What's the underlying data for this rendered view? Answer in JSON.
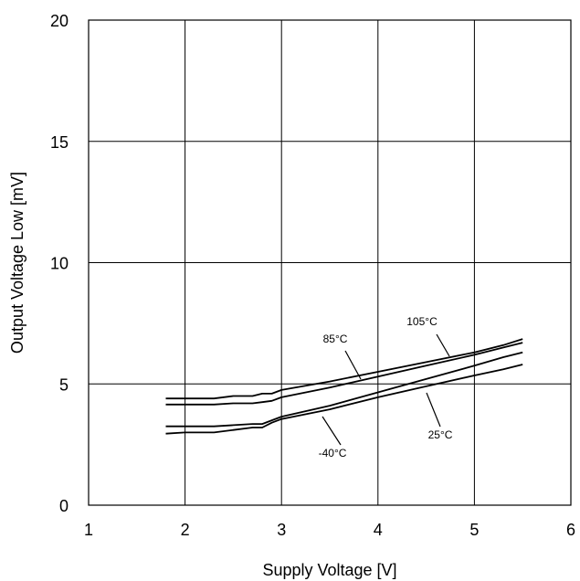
{
  "chart_data": {
    "type": "line",
    "xlabel": "Supply Voltage [V]",
    "ylabel": "Output Voltage Low [mV]",
    "xlim": [
      1,
      6
    ],
    "ylim": [
      0,
      20
    ],
    "xticks": [
      "1",
      "2",
      "3",
      "4",
      "5",
      "6"
    ],
    "yticks": [
      "0",
      "5",
      "10",
      "15",
      "20"
    ],
    "grid": true,
    "legend": "none",
    "series": [
      {
        "name": "105°C",
        "x": [
          1.8,
          2.0,
          2.3,
          2.5,
          2.7,
          2.8,
          2.9,
          3.0,
          3.5,
          4.0,
          4.5,
          5.0,
          5.3,
          5.5
        ],
        "y": [
          4.4,
          4.4,
          4.4,
          4.5,
          4.5,
          4.6,
          4.6,
          4.75,
          5.1,
          5.5,
          5.9,
          6.3,
          6.6,
          6.85
        ]
      },
      {
        "name": "85°C",
        "x": [
          1.8,
          2.0,
          2.3,
          2.5,
          2.7,
          2.8,
          2.9,
          3.0,
          3.5,
          4.0,
          4.5,
          5.0,
          5.3,
          5.5
        ],
        "y": [
          4.15,
          4.15,
          4.15,
          4.2,
          4.2,
          4.25,
          4.3,
          4.45,
          4.85,
          5.3,
          5.75,
          6.2,
          6.5,
          6.7
        ]
      },
      {
        "name": "25°C",
        "x": [
          1.8,
          2.0,
          2.3,
          2.5,
          2.7,
          2.8,
          2.9,
          3.0,
          3.5,
          4.0,
          4.5,
          5.0,
          5.3,
          5.5
        ],
        "y": [
          3.25,
          3.25,
          3.25,
          3.3,
          3.35,
          3.35,
          3.5,
          3.65,
          4.1,
          4.65,
          5.2,
          5.75,
          6.1,
          6.3
        ]
      },
      {
        "name": "-40°C",
        "x": [
          1.8,
          2.0,
          2.3,
          2.5,
          2.7,
          2.8,
          2.9,
          3.0,
          3.5,
          4.0,
          4.5,
          5.0,
          5.3,
          5.5
        ],
        "y": [
          2.95,
          3.0,
          3.0,
          3.1,
          3.2,
          3.2,
          3.4,
          3.55,
          3.95,
          4.45,
          4.9,
          5.35,
          5.6,
          5.8
        ]
      }
    ],
    "annotations": [
      "105°C",
      "85°C",
      "25°C",
      "-40°C"
    ]
  }
}
